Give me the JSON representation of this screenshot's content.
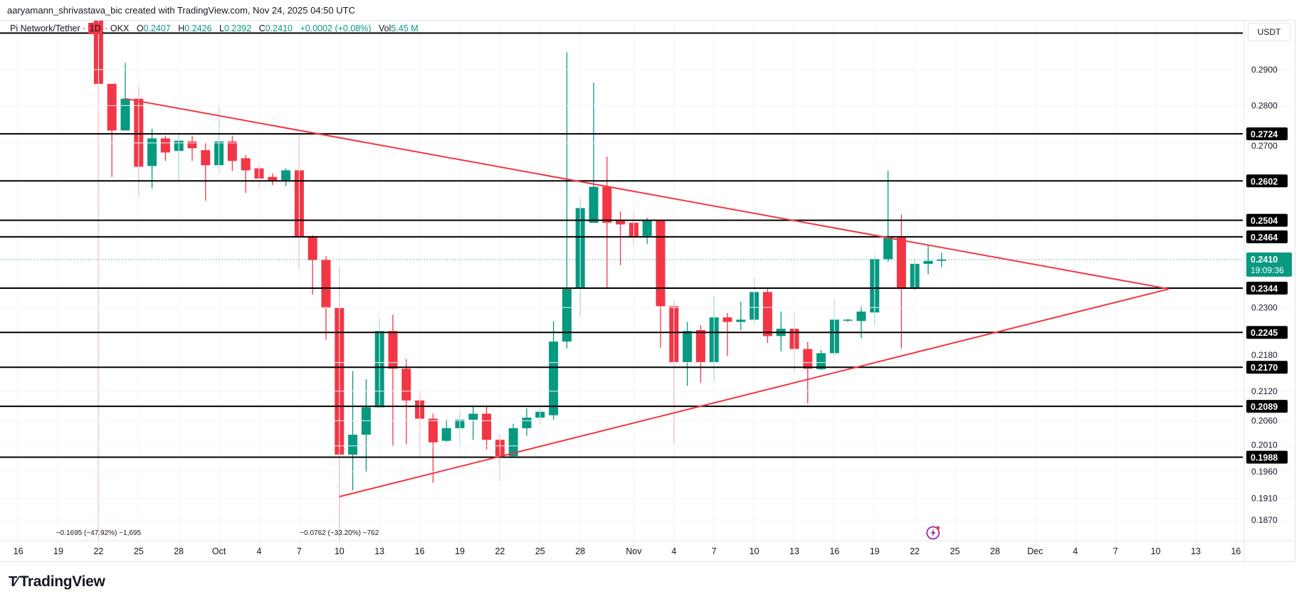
{
  "header": {
    "credit": "aaryamann_shrivastava_bic created with TradingView.com, Nov 24, 2025 04:50 UTC"
  },
  "legend": {
    "symbol": "Pi Network/Tether",
    "sep": "·",
    "timeframe": "1D",
    "exchange": "OKX",
    "o_label": "O",
    "o": "0.2407",
    "h_label": "H",
    "h": "0.2426",
    "l_label": "L",
    "l": "0.2392",
    "c_label": "C",
    "c": "0.2410",
    "change": "+0.0002 (+0.08%)",
    "vol_label": "Vol",
    "vol": "5.45 M"
  },
  "price_axis": {
    "currency_button": "USDT",
    "current_price": "0.2410",
    "countdown": "19:09:36"
  },
  "branding": {
    "logo_mark": "TV",
    "logo_text": "TradingView"
  },
  "colors": {
    "up": "#089981",
    "down": "#f23645",
    "trendline": "#f23645",
    "level": "#000000",
    "alert": "#9c27b0"
  },
  "icons": {
    "alert": "lightning-icon"
  },
  "chart_data": {
    "type": "candlestick",
    "title": "",
    "y_scale": "log",
    "ylim": [
      0.1795,
      0.304
    ],
    "xlim": [
      "2025-09-16",
      "2025-12-16"
    ],
    "grid": true,
    "y_ticks": [
      "0.2900",
      "0.2800",
      "0.2700",
      "0.2300",
      "0.2180",
      "0.2120",
      "0.2060",
      "0.2010",
      "0.1960",
      "0.1910",
      "0.1870"
    ],
    "x_ticks": [
      {
        "date": "2025-09-16",
        "label": "16"
      },
      {
        "date": "2025-09-19",
        "label": "19"
      },
      {
        "date": "2025-09-22",
        "label": "22"
      },
      {
        "date": "2025-09-25",
        "label": "25"
      },
      {
        "date": "2025-09-28",
        "label": "28"
      },
      {
        "date": "2025-10-01",
        "label": "Oct"
      },
      {
        "date": "2025-10-04",
        "label": "4"
      },
      {
        "date": "2025-10-07",
        "label": "7"
      },
      {
        "date": "2025-10-10",
        "label": "10"
      },
      {
        "date": "2025-10-13",
        "label": "13"
      },
      {
        "date": "2025-10-16",
        "label": "16"
      },
      {
        "date": "2025-10-19",
        "label": "19"
      },
      {
        "date": "2025-10-22",
        "label": "22"
      },
      {
        "date": "2025-10-25",
        "label": "25"
      },
      {
        "date": "2025-10-28",
        "label": "28"
      },
      {
        "date": "2025-11-01",
        "label": "Nov"
      },
      {
        "date": "2025-11-04",
        "label": "4"
      },
      {
        "date": "2025-11-07",
        "label": "7"
      },
      {
        "date": "2025-11-10",
        "label": "10"
      },
      {
        "date": "2025-11-13",
        "label": "13"
      },
      {
        "date": "2025-11-16",
        "label": "16"
      },
      {
        "date": "2025-11-19",
        "label": "19"
      },
      {
        "date": "2025-11-22",
        "label": "22"
      },
      {
        "date": "2025-11-25",
        "label": "25"
      },
      {
        "date": "2025-11-28",
        "label": "28"
      },
      {
        "date": "2025-12-01",
        "label": "Dec"
      },
      {
        "date": "2025-12-04",
        "label": "4"
      },
      {
        "date": "2025-12-07",
        "label": "7"
      },
      {
        "date": "2025-12-10",
        "label": "10"
      },
      {
        "date": "2025-12-13",
        "label": "13"
      },
      {
        "date": "2025-12-16",
        "label": "16"
      }
    ],
    "candles": [
      [
        "2025-09-22",
        0.305,
        0.312,
        0.181,
        0.286
      ],
      [
        "2025-09-23",
        0.286,
        0.286,
        0.2612,
        0.2733
      ],
      [
        "2025-09-24",
        0.2733,
        0.2919,
        0.2733,
        0.2819
      ],
      [
        "2025-09-25",
        0.2819,
        0.2852,
        0.2562,
        0.2638
      ],
      [
        "2025-09-26",
        0.264,
        0.2738,
        0.2583,
        0.2712
      ],
      [
        "2025-09-27",
        0.2712,
        0.2719,
        0.2653,
        0.2675
      ],
      [
        "2025-09-28",
        0.2679,
        0.2722,
        0.2604,
        0.2706
      ],
      [
        "2025-09-29",
        0.2704,
        0.2719,
        0.2653,
        0.2686
      ],
      [
        "2025-09-30",
        0.2681,
        0.2701,
        0.2552,
        0.2642
      ],
      [
        "2025-10-01",
        0.2642,
        0.2798,
        0.2621,
        0.2704
      ],
      [
        "2025-10-02",
        0.2704,
        0.2719,
        0.2627,
        0.2653
      ],
      [
        "2025-10-03",
        0.266,
        0.2668,
        0.2572,
        0.2629
      ],
      [
        "2025-10-04",
        0.2634,
        0.2642,
        0.2583,
        0.2608
      ],
      [
        "2025-10-05",
        0.2612,
        0.2621,
        0.2591,
        0.2604
      ],
      [
        "2025-10-06",
        0.2604,
        0.2634,
        0.2589,
        0.2629
      ],
      [
        "2025-10-07",
        0.2629,
        0.2724,
        0.2389,
        0.2464
      ],
      [
        "2025-10-08",
        0.2464,
        0.2468,
        0.2329,
        0.2409
      ],
      [
        "2025-10-09",
        0.2409,
        0.2418,
        0.2229,
        0.2299
      ],
      [
        "2025-10-10",
        0.2299,
        0.2394,
        0.179,
        0.1993
      ],
      [
        "2025-10-11",
        0.1993,
        0.2162,
        0.1925,
        0.2032
      ],
      [
        "2025-10-12",
        0.2032,
        0.2145,
        0.196,
        0.2087
      ],
      [
        "2025-10-13",
        0.2087,
        0.2275,
        0.2085,
        0.2248
      ],
      [
        "2025-10-14",
        0.2248,
        0.2284,
        0.201,
        0.2167
      ],
      [
        "2025-10-15",
        0.2167,
        0.2187,
        0.2013,
        0.2101
      ],
      [
        "2025-10-16",
        0.2101,
        0.2121,
        0.199,
        0.2064
      ],
      [
        "2025-10-17",
        0.2064,
        0.2074,
        0.1939,
        0.2017
      ],
      [
        "2025-10-18",
        0.202,
        0.2062,
        0.2018,
        0.2045
      ],
      [
        "2025-10-19",
        0.2045,
        0.2081,
        0.2008,
        0.2062
      ],
      [
        "2025-10-20",
        0.2062,
        0.209,
        0.2022,
        0.2074
      ],
      [
        "2025-10-21",
        0.2074,
        0.209,
        0.2003,
        0.2022
      ],
      [
        "2025-10-22",
        0.2022,
        0.2032,
        0.1942,
        0.199
      ],
      [
        "2025-10-23",
        0.199,
        0.2054,
        0.1987,
        0.2045
      ],
      [
        "2025-10-24",
        0.2045,
        0.2085,
        0.203,
        0.2066
      ],
      [
        "2025-10-25",
        0.2066,
        0.2085,
        0.2053,
        0.2078
      ],
      [
        "2025-10-26",
        0.2071,
        0.227,
        0.2062,
        0.2225
      ],
      [
        "2025-10-27",
        0.2225,
        0.2949,
        0.221,
        0.2345
      ],
      [
        "2025-10-28",
        0.2345,
        0.2557,
        0.228,
        0.2534
      ],
      [
        "2025-10-29",
        0.2498,
        0.2863,
        0.2498,
        0.2587
      ],
      [
        "2025-10-30",
        0.2587,
        0.2664,
        0.2343,
        0.2498
      ],
      [
        "2025-10-31",
        0.2504,
        0.2526,
        0.2397,
        0.2494
      ],
      [
        "2025-11-01",
        0.2498,
        0.2522,
        0.2443,
        0.2464
      ],
      [
        "2025-11-02",
        0.2466,
        0.251,
        0.2447,
        0.2504
      ],
      [
        "2025-11-03",
        0.2504,
        0.2504,
        0.2212,
        0.2303
      ],
      [
        "2025-11-04",
        0.2303,
        0.2315,
        0.2015,
        0.2181
      ],
      [
        "2025-11-05",
        0.2181,
        0.2268,
        0.2131,
        0.2248
      ],
      [
        "2025-11-06",
        0.225,
        0.2261,
        0.2137,
        0.2181
      ],
      [
        "2025-11-07",
        0.2181,
        0.2326,
        0.2141,
        0.2278
      ],
      [
        "2025-11-08",
        0.2278,
        0.2288,
        0.2194,
        0.2268
      ],
      [
        "2025-11-09",
        0.2268,
        0.2313,
        0.225,
        0.2273
      ],
      [
        "2025-11-10",
        0.2273,
        0.2367,
        0.2263,
        0.2335
      ],
      [
        "2025-11-11",
        0.2335,
        0.2342,
        0.2222,
        0.2237
      ],
      [
        "2025-11-12",
        0.2237,
        0.2291,
        0.2204,
        0.2253
      ],
      [
        "2025-11-13",
        0.2253,
        0.2289,
        0.2159,
        0.2209
      ],
      [
        "2025-11-14",
        0.2209,
        0.2224,
        0.2095,
        0.2167
      ],
      [
        "2025-11-15",
        0.2166,
        0.2207,
        0.2164,
        0.22
      ],
      [
        "2025-11-16",
        0.22,
        0.2317,
        0.2192,
        0.2273
      ],
      [
        "2025-11-17",
        0.2271,
        0.2275,
        0.2268,
        0.2273
      ],
      [
        "2025-11-18",
        0.227,
        0.2303,
        0.2232,
        0.2291
      ],
      [
        "2025-11-19",
        0.2289,
        0.242,
        0.226,
        0.2411
      ],
      [
        "2025-11-20",
        0.2411,
        0.2628,
        0.2405,
        0.2462
      ],
      [
        "2025-11-21",
        0.2462,
        0.2518,
        0.221,
        0.2342
      ],
      [
        "2025-11-22",
        0.2342,
        0.2411,
        0.2338,
        0.24
      ],
      [
        "2025-11-23",
        0.24,
        0.2445,
        0.2376,
        0.2407
      ],
      [
        "2025-11-24",
        0.2407,
        0.2426,
        0.2392,
        0.241
      ]
    ],
    "horizontal_levels": [
      {
        "price": 0.3005,
        "label": ""
      },
      {
        "price": 0.2724,
        "label": "0.2724"
      },
      {
        "price": 0.2602,
        "label": "0.2602"
      },
      {
        "price": 0.2504,
        "label": "0.2504"
      },
      {
        "price": 0.2464,
        "label": "0.2464"
      },
      {
        "price": 0.2344,
        "label": "0.2344"
      },
      {
        "price": 0.2245,
        "label": "0.2245"
      },
      {
        "price": 0.217,
        "label": "0.2170"
      },
      {
        "price": 0.2089,
        "label": "0.2089"
      },
      {
        "price": 0.1988,
        "label": "0.1988"
      }
    ],
    "trendlines": [
      {
        "from": [
          "2025-09-24",
          0.2819
        ],
        "to": [
          "2025-12-11",
          0.2342
        ]
      },
      {
        "from": [
          "2025-10-10",
          0.1913
        ],
        "to": [
          "2025-12-11",
          0.2342
        ]
      }
    ],
    "annotations": [
      {
        "date": "2025-09-22",
        "text": "−0.1695 (−47.92%) −1,695"
      },
      {
        "date": "2025-10-10",
        "text": "−0.0762 (−33.20%) −762"
      }
    ],
    "last_price": 0.241
  }
}
